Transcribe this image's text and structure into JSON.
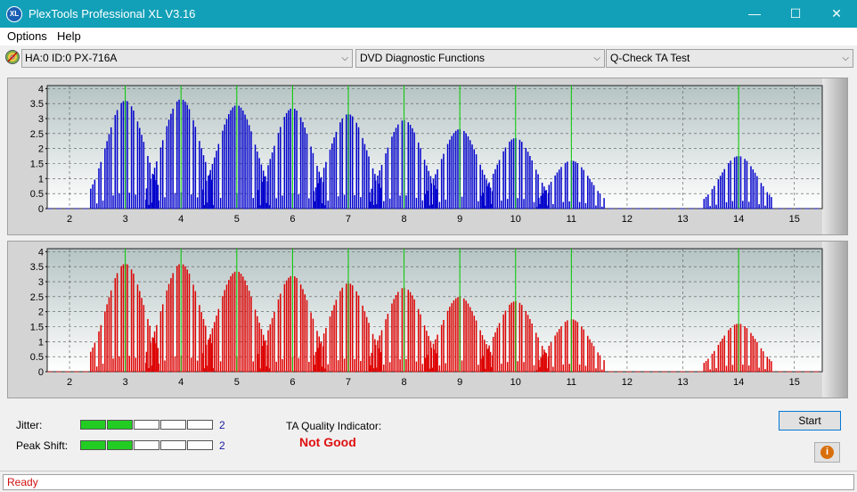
{
  "window": {
    "title": "PlexTools Professional XL V3.16",
    "icon_text": "XL",
    "minimize_glyph": "—",
    "maximize_glyph": "☐",
    "close_glyph": "✕"
  },
  "menu": [
    "Options",
    "Help"
  ],
  "toolbar": {
    "drive": "HA:0 ID:0  PX-716A",
    "function": "DVD Diagnostic Functions",
    "test": "Q-Check TA Test",
    "arrow": "⌵"
  },
  "colors": {
    "top_series": "#0000cc",
    "bottom_series": "#dd0000",
    "markers": "#00cc00",
    "quality_bad": "#e01010",
    "meter_on": "#22cc22"
  },
  "chart_data": [
    {
      "type": "bar",
      "name": "top",
      "xlim": [
        1.6,
        15.5
      ],
      "ylim": [
        0,
        4.1
      ],
      "x_ticks": [
        "2",
        "3",
        "4",
        "5",
        "6",
        "7",
        "8",
        "9",
        "10",
        "11",
        "12",
        "13",
        "14",
        "15"
      ],
      "y_ticks": [
        "4",
        "3.5",
        "3",
        "2.5",
        "2",
        "1.5",
        "1",
        "0.5",
        "0"
      ],
      "markers": [
        3,
        4,
        5,
        6,
        7,
        8,
        9,
        10,
        11,
        14
      ],
      "grid": true,
      "humps": [
        [
          3.0,
          3.6
        ],
        [
          4.0,
          3.65
        ],
        [
          5.0,
          3.45
        ],
        [
          6.0,
          3.35
        ],
        [
          7.0,
          3.15
        ],
        [
          8.0,
          2.95
        ],
        [
          9.0,
          2.65
        ],
        [
          10.0,
          2.35
        ],
        [
          11.0,
          1.6
        ],
        [
          14.0,
          1.75
        ]
      ]
    },
    {
      "type": "bar",
      "name": "bottom",
      "xlim": [
        1.6,
        15.5
      ],
      "ylim": [
        0,
        4.1
      ],
      "x_ticks": [
        "2",
        "3",
        "4",
        "5",
        "6",
        "7",
        "8",
        "9",
        "10",
        "11",
        "12",
        "13",
        "14",
        "15"
      ],
      "y_ticks": [
        "4",
        "3.5",
        "3",
        "2.5",
        "2",
        "1.5",
        "1",
        "0.5",
        "0"
      ],
      "markers": [
        3,
        4,
        5,
        6,
        7,
        8,
        9,
        10,
        11,
        14
      ],
      "grid": true,
      "humps": [
        [
          3.0,
          3.6
        ],
        [
          4.0,
          3.6
        ],
        [
          5.0,
          3.35
        ],
        [
          6.0,
          3.2
        ],
        [
          7.0,
          2.95
        ],
        [
          8.0,
          2.8
        ],
        [
          9.0,
          2.5
        ],
        [
          10.0,
          2.35
        ],
        [
          11.0,
          1.75
        ],
        [
          14.0,
          1.6
        ]
      ]
    }
  ],
  "results": {
    "jitter_label": "Jitter:",
    "jitter_value": "2",
    "jitter_level": 2,
    "peak_label": "Peak Shift:",
    "peak_value": "2",
    "peak_level": 2,
    "meter_segments": 5,
    "quality_label": "TA Quality Indicator:",
    "quality_value": "Not Good"
  },
  "buttons": {
    "start": "Start",
    "info_glyph": "i"
  },
  "status": "Ready"
}
